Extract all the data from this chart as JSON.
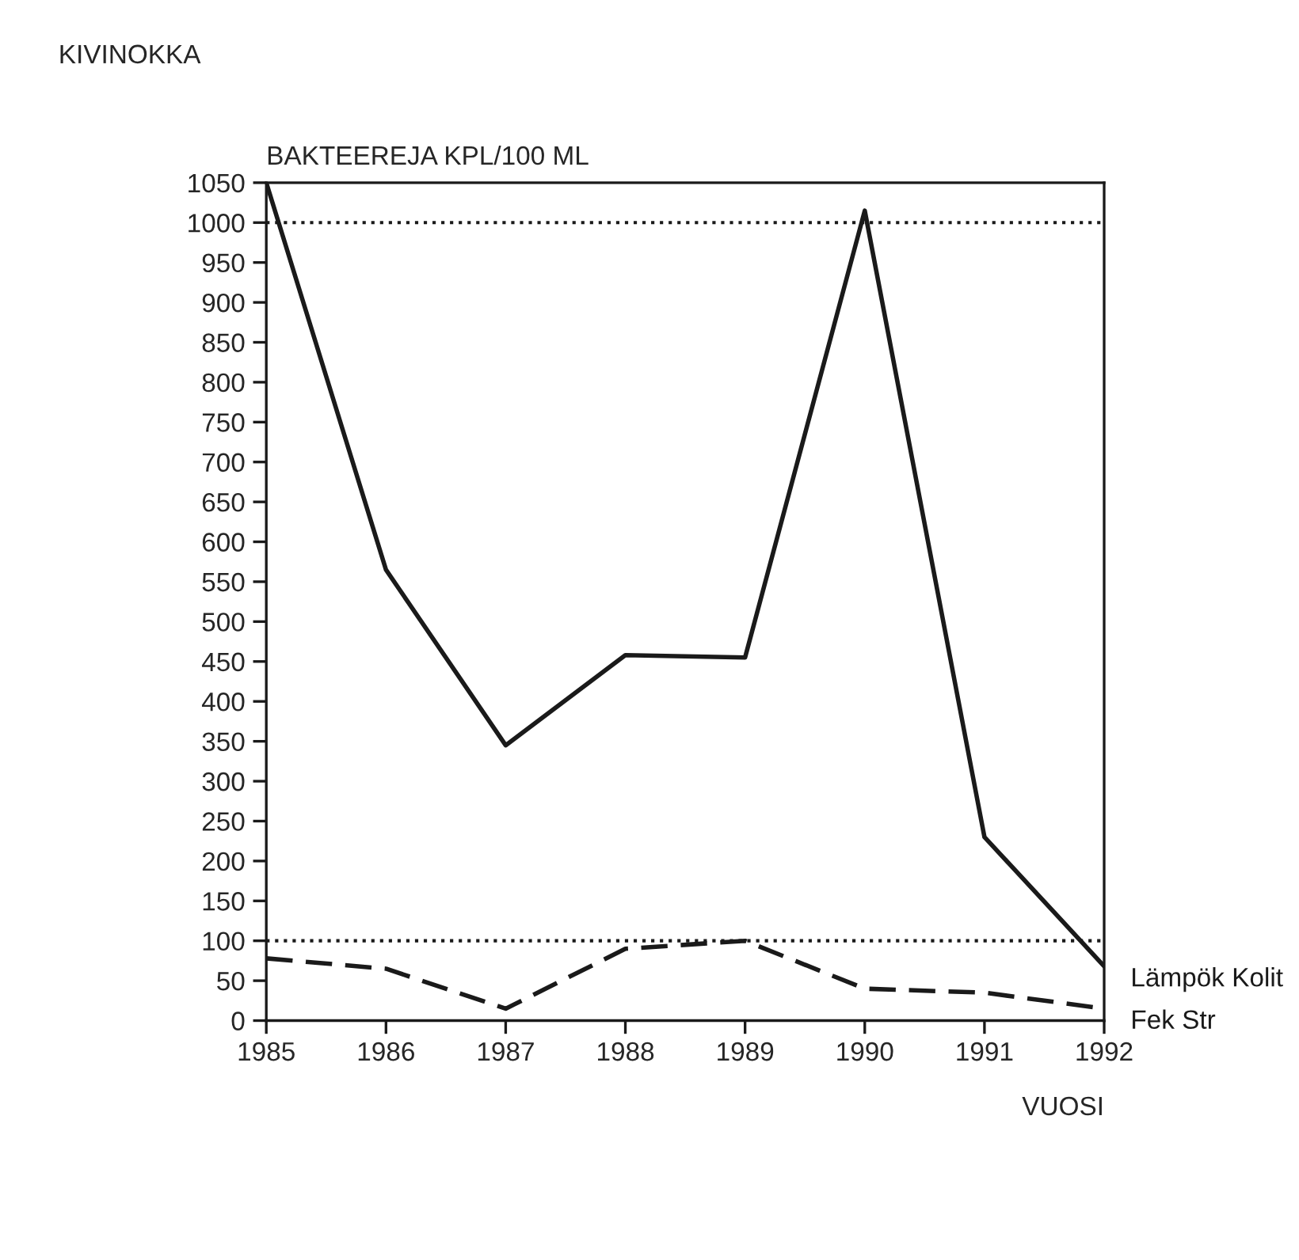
{
  "chart_data": {
    "type": "line",
    "title": "KIVINOKKA",
    "ylabel": "BAKTEEREJA KPL/100 ML",
    "xlabel": "VUOSI",
    "x": [
      1985,
      1986,
      1987,
      1988,
      1989,
      1990,
      1991,
      1992
    ],
    "series": [
      {
        "name": "Lämpök Kolit",
        "color": "#1a1a1a",
        "line_style": "solid",
        "values": [
          1050,
          565,
          345,
          458,
          455,
          1015,
          230,
          68
        ]
      },
      {
        "name": "Fek Str",
        "color": "#1a1a1a",
        "line_style": "dashed",
        "values": [
          78,
          65,
          15,
          90,
          100,
          40,
          35,
          15
        ]
      }
    ],
    "ref_lines": [
      {
        "axis": "y",
        "value": 1000,
        "label": null,
        "color": "#1a1a1a",
        "line_style": "dotted"
      },
      {
        "axis": "y",
        "value": 100,
        "label": null,
        "color": "#1a1a1a",
        "line_style": "dotted"
      }
    ],
    "xlim": [
      1985,
      1992
    ],
    "xticks": [
      1985,
      1986,
      1987,
      1988,
      1989,
      1990,
      1991,
      1992
    ],
    "ylim": [
      0,
      1050
    ],
    "yticks": [
      0,
      50,
      100,
      150,
      200,
      250,
      300,
      350,
      400,
      450,
      500,
      550,
      600,
      650,
      700,
      750,
      800,
      850,
      900,
      950,
      1000,
      1050
    ],
    "grid": false,
    "legend": false,
    "marker": "none"
  }
}
